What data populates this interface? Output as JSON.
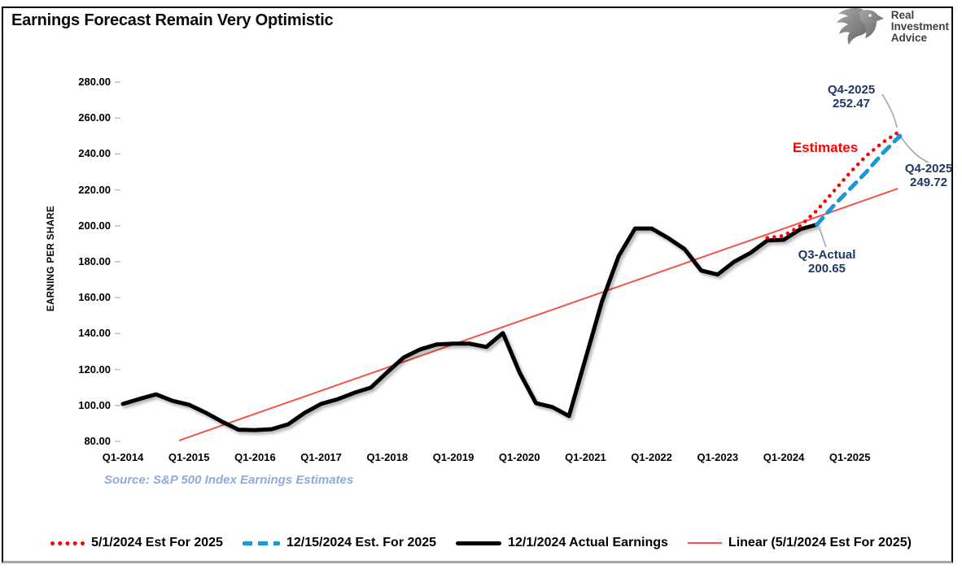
{
  "header": {
    "title": "Earnings Forecast Remain Very Optimistic",
    "logo": {
      "line1": "Real",
      "line2": "Investment",
      "line3": "Advice"
    }
  },
  "axes": {
    "y": {
      "title": "EARNING PER SHARE",
      "ticks": [
        "280.00",
        "260.00",
        "240.00",
        "220.00",
        "200.00",
        "180.00",
        "160.00",
        "140.00",
        "120.00",
        "100.00",
        "80.00"
      ]
    },
    "x": {
      "ticks": [
        {
          "label": "Q1-2014",
          "q": 0
        },
        {
          "label": "Q1-2015",
          "q": 4
        },
        {
          "label": "Q1-2016",
          "q": 8
        },
        {
          "label": "Q1-2017",
          "q": 12
        },
        {
          "label": "Q1-2018",
          "q": 16
        },
        {
          "label": "Q1-2019",
          "q": 20
        },
        {
          "label": "Q1-2020",
          "q": 24
        },
        {
          "label": "Q1-2021",
          "q": 28
        },
        {
          "label": "Q1-2022",
          "q": 32
        },
        {
          "label": "Q1-2023",
          "q": 36
        },
        {
          "label": "Q1-2024",
          "q": 40
        },
        {
          "label": "Q1-2025",
          "q": 44
        }
      ]
    }
  },
  "chart_data": {
    "type": "line",
    "title": "Earnings Forecast Remain Very Optimistic",
    "xlabel": "",
    "ylabel": "EARNING PER SHARE",
    "ylim": [
      80,
      280
    ],
    "x_unit": "quarters starting Q1-2014",
    "grid": false,
    "legend_position": "bottom",
    "series": [
      {
        "name": "12/1/2024 Actual Earnings",
        "color": "#000000",
        "style": "solid-thick",
        "start_index": 0,
        "values": [
          100.85,
          103.6,
          106.2,
          102.6,
          100.4,
          96.0,
          91.0,
          86.5,
          86.3,
          86.8,
          89.5,
          95.9,
          100.9,
          103.5,
          107.0,
          109.9,
          118.5,
          126.7,
          131.2,
          134.0,
          134.4,
          134.4,
          132.6,
          140.3,
          118.5,
          101.3,
          99.1,
          94.1,
          126.0,
          158.0,
          183.0,
          198.5,
          198.5,
          193.2,
          187.0,
          175.1,
          172.9,
          180.0,
          185.0,
          191.8,
          192.2,
          198.1,
          200.65
        ]
      },
      {
        "name": "5/1/2024 Est For 2025",
        "color": "#ff0000",
        "style": "dotted",
        "start_index": 39,
        "values": [
          193.3,
          194.5,
          200.0,
          208.5,
          219.0,
          229.5,
          239.0,
          246.5,
          252.47
        ]
      },
      {
        "name": "12/15/2024 Est. For 2025",
        "color": "#1f97d4",
        "style": "dashed",
        "end_dot": true,
        "start_index": 42,
        "values": [
          200.65,
          211.0,
          220.5,
          230.0,
          240.5,
          249.72
        ]
      },
      {
        "name": "Linear (5/1/2024 Est For 2025)",
        "color": "#f2544b",
        "style": "trend",
        "trend": {
          "start_index": 3.4,
          "start_value": 80.5,
          "end_index": 46.9,
          "end_value": 220.7
        }
      }
    ]
  },
  "annotations": {
    "estimates_label": "Estimates",
    "q4_red": {
      "line1": "Q4-2025",
      "line2": "252.47"
    },
    "q4_blue": {
      "line1": "Q4-2025",
      "line2": "249.72"
    },
    "q3_actual": {
      "line1": "Q3-Actual",
      "line2": "200.65"
    }
  },
  "source": "Source: S&P 500 Index Earnings Estimates"
}
